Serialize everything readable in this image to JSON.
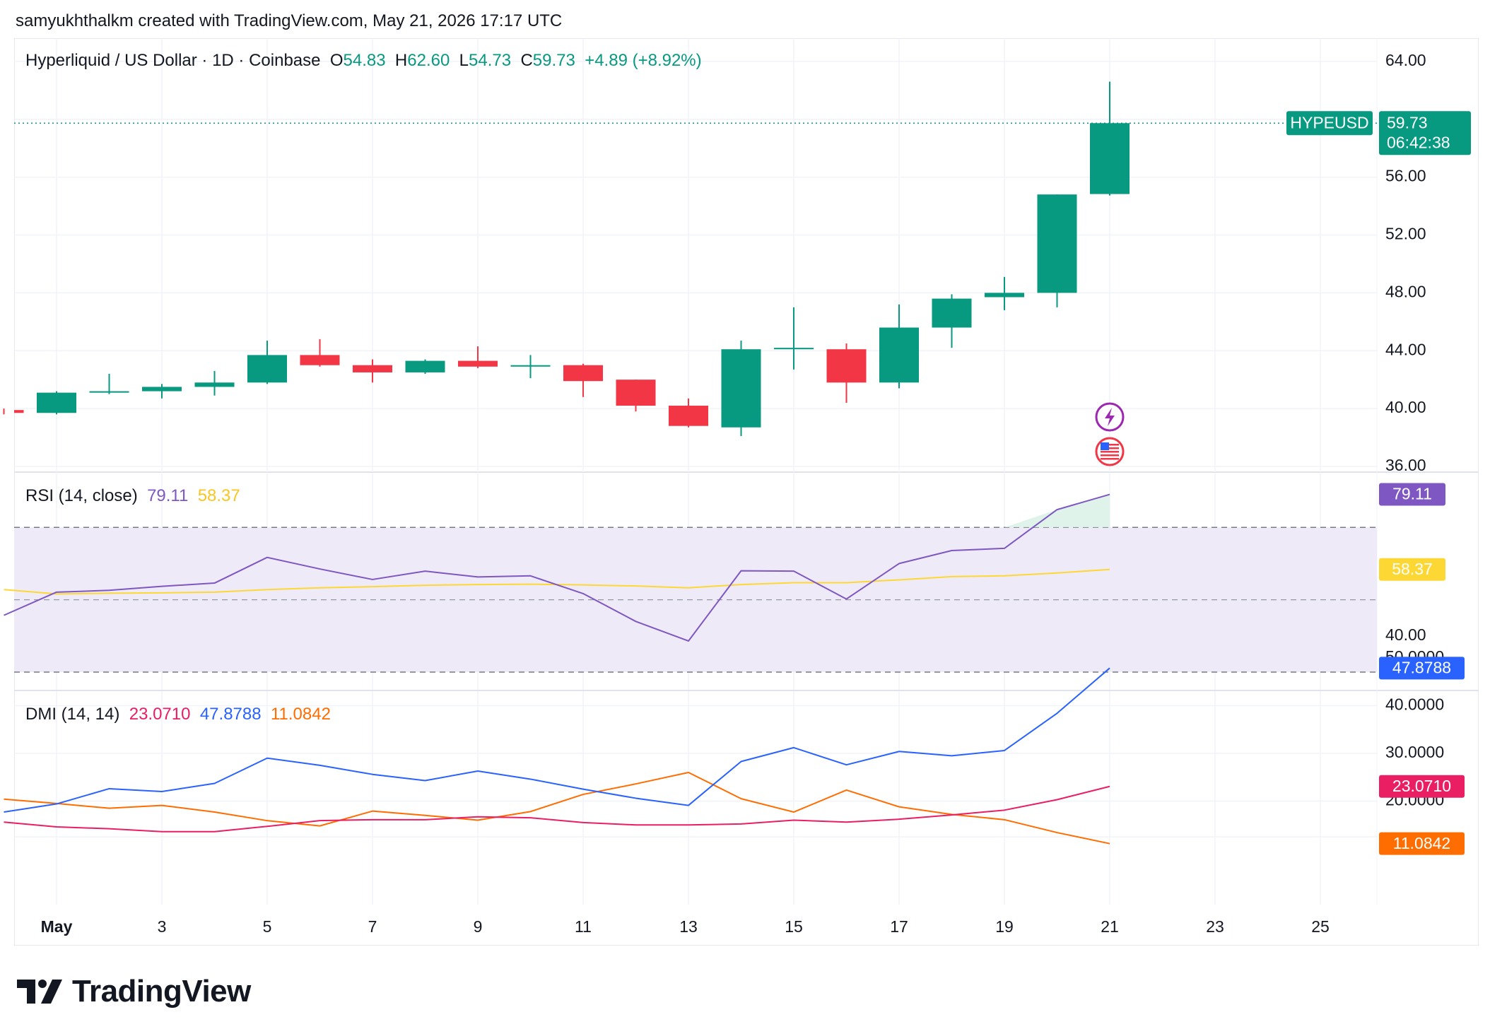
{
  "header": {
    "snapshot_text": "samyukhthalkm created with TradingView.com, May 21, 2026 17:17 UTC"
  },
  "legend": {
    "symbol_text": "Hyperliquid / US Dollar · 1D · Coinbase",
    "open_label": "O",
    "open_value": "54.83",
    "high_label": "H",
    "high_value": "62.60",
    "low_label": "L",
    "low_value": "54.73",
    "close_label": "C",
    "close_value": "59.73",
    "change": "+4.89 (+8.92%)"
  },
  "price_tag": {
    "symbol": "HYPEUSD",
    "price": "59.73",
    "countdown": "06:42:38"
  },
  "rsi_legend": {
    "title": "RSI (14, close)",
    "rsi_value": "79.11",
    "ma_value": "58.37"
  },
  "dmi_legend": {
    "title": "DMI (14, 14)",
    "adx_value": "23.0710",
    "plus_di_value": "47.8788",
    "minus_di_value": "11.0842"
  },
  "logo": {
    "text": "TradingView"
  },
  "colors": {
    "up": "#089981",
    "down": "#f23645",
    "rsi": "#7e57c2",
    "rsi_ma": "#fdd835",
    "dmi_adx": "#e91e63",
    "dmi_plus": "#2962ff",
    "dmi_minus": "#ff6d00",
    "rsi_band": "#efeaf8",
    "grid": "#f0f3fa"
  },
  "chart_data": [
    {
      "type": "candlestick",
      "title": "Hyperliquid / US Dollar · 1D · Coinbase",
      "x_ticks": [
        "May",
        "3",
        "5",
        "7",
        "9",
        "11",
        "13",
        "15",
        "17",
        "19",
        "21",
        "23",
        "25"
      ],
      "y_ticks": [
        "64.00",
        "56.00",
        "52.00",
        "48.00",
        "44.00",
        "40.00",
        "36.00"
      ],
      "ylim": [
        36,
        64
      ],
      "candles": [
        {
          "day": 30,
          "o": 39.9,
          "h": 40.0,
          "l": 39.6,
          "c": 39.7
        },
        {
          "day": 1,
          "o": 39.7,
          "h": 41.2,
          "l": 39.6,
          "c": 41.1
        },
        {
          "day": 2,
          "o": 41.1,
          "h": 42.4,
          "l": 41.0,
          "c": 41.2
        },
        {
          "day": 3,
          "o": 41.2,
          "h": 41.7,
          "l": 40.7,
          "c": 41.5
        },
        {
          "day": 4,
          "o": 41.5,
          "h": 42.6,
          "l": 40.9,
          "c": 41.8
        },
        {
          "day": 5,
          "o": 41.8,
          "h": 44.7,
          "l": 41.7,
          "c": 43.7
        },
        {
          "day": 6,
          "o": 43.7,
          "h": 44.8,
          "l": 42.9,
          "c": 43.0
        },
        {
          "day": 7,
          "o": 43.0,
          "h": 43.4,
          "l": 41.8,
          "c": 42.5
        },
        {
          "day": 8,
          "o": 42.5,
          "h": 43.4,
          "l": 42.4,
          "c": 43.3
        },
        {
          "day": 9,
          "o": 43.3,
          "h": 44.3,
          "l": 42.8,
          "c": 42.9
        },
        {
          "day": 10,
          "o": 42.9,
          "h": 43.7,
          "l": 42.1,
          "c": 43.0
        },
        {
          "day": 11,
          "o": 43.0,
          "h": 43.1,
          "l": 40.8,
          "c": 41.9
        },
        {
          "day": 12,
          "o": 42.0,
          "h": 42.0,
          "l": 39.8,
          "c": 40.2
        },
        {
          "day": 13,
          "o": 40.2,
          "h": 40.7,
          "l": 38.7,
          "c": 38.8
        },
        {
          "day": 14,
          "o": 38.7,
          "h": 44.7,
          "l": 38.1,
          "c": 44.1
        },
        {
          "day": 15,
          "o": 44.1,
          "h": 47.0,
          "l": 42.7,
          "c": 44.2
        },
        {
          "day": 16,
          "o": 44.1,
          "h": 44.5,
          "l": 40.4,
          "c": 41.8
        },
        {
          "day": 17,
          "o": 41.8,
          "h": 47.2,
          "l": 41.4,
          "c": 45.6
        },
        {
          "day": 18,
          "o": 45.6,
          "h": 47.9,
          "l": 44.2,
          "c": 47.6
        },
        {
          "day": 19,
          "o": 47.7,
          "h": 49.1,
          "l": 46.8,
          "c": 48.0
        },
        {
          "day": 20,
          "o": 48.0,
          "h": 54.8,
          "l": 47.0,
          "c": 54.8
        },
        {
          "day": 21,
          "o": 54.83,
          "h": 62.6,
          "l": 54.73,
          "c": 59.73
        }
      ],
      "last_price": 59.73
    },
    {
      "type": "line",
      "title": "RSI (14, close)",
      "y_ticks": [
        "40.00"
      ],
      "ylim": [
        30,
        85
      ],
      "bands": {
        "upper": 70,
        "middle": 50,
        "lower": 30
      },
      "x": [
        30,
        1,
        2,
        3,
        4,
        5,
        6,
        7,
        8,
        9,
        10,
        11,
        12,
        13,
        14,
        15,
        16,
        17,
        18,
        19,
        20,
        21
      ],
      "series": [
        {
          "name": "RSI",
          "values": [
            45.7,
            52.1,
            52.6,
            53.7,
            54.6,
            61.7,
            58.5,
            55.6,
            57.9,
            56.3,
            56.6,
            51.7,
            44.0,
            38.6,
            58.0,
            57.9,
            50.2,
            60.0,
            63.6,
            64.2,
            74.9,
            79.11
          ]
        },
        {
          "name": "RSI-based MA",
          "values": [
            52.8,
            51.6,
            51.8,
            51.9,
            52.1,
            52.8,
            53.3,
            53.6,
            54.0,
            54.2,
            54.3,
            54.1,
            53.8,
            53.3,
            54.2,
            54.7,
            54.7,
            55.5,
            56.4,
            56.6,
            57.4,
            58.37
          ]
        }
      ]
    },
    {
      "type": "line",
      "title": "DMI (14, 14)",
      "y_ticks": [
        "50.0000",
        "40.0000",
        "30.0000",
        "20.0000"
      ],
      "ylim": [
        10,
        50
      ],
      "x": [
        30,
        1,
        2,
        3,
        4,
        5,
        6,
        7,
        8,
        9,
        10,
        11,
        12,
        13,
        14,
        15,
        16,
        17,
        18,
        19,
        20,
        21
      ],
      "series": [
        {
          "name": "ADX",
          "values": [
            15.6,
            14.6,
            14.2,
            13.6,
            13.6,
            14.7,
            15.9,
            16.1,
            16.1,
            16.7,
            16.5,
            15.5,
            15.0,
            15.0,
            15.2,
            16.0,
            15.6,
            16.2,
            17.1,
            18.1,
            20.3,
            23.071
          ]
        },
        {
          "name": "+DI",
          "values": [
            17.7,
            19.4,
            22.6,
            22.0,
            23.7,
            29.0,
            27.5,
            25.6,
            24.3,
            26.3,
            24.6,
            22.5,
            20.6,
            19.1,
            28.3,
            31.2,
            27.6,
            30.4,
            29.5,
            30.6,
            38.4,
            47.8788
          ]
        },
        {
          "name": "-DI",
          "values": [
            20.4,
            19.5,
            18.5,
            19.1,
            17.7,
            15.9,
            14.8,
            17.9,
            17.0,
            16.0,
            17.8,
            21.4,
            23.6,
            26.0,
            20.5,
            17.7,
            22.3,
            18.8,
            17.2,
            16.1,
            13.4,
            11.0842
          ]
        }
      ]
    }
  ]
}
